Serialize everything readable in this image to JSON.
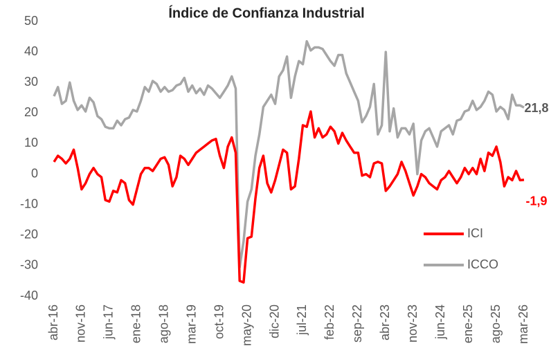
{
  "chart_data": {
    "type": "line",
    "title": "Índice de Confianza Industrial",
    "categories": [
      "abr-16",
      null,
      null,
      null,
      null,
      null,
      null,
      "nov-16",
      null,
      null,
      null,
      null,
      null,
      null,
      "jun-17",
      null,
      null,
      null,
      null,
      null,
      null,
      "ene-18",
      null,
      null,
      null,
      null,
      null,
      null,
      "ago-18",
      null,
      null,
      null,
      null,
      null,
      null,
      "mar-19",
      null,
      null,
      null,
      null,
      null,
      null,
      "oct-19",
      null,
      null,
      null,
      null,
      null,
      null,
      "may-20",
      null,
      null,
      null,
      null,
      null,
      null,
      "dic-20",
      null,
      null,
      null,
      null,
      null,
      null,
      "jul-21",
      null,
      null,
      null,
      null,
      null,
      null,
      "feb-22",
      null,
      null,
      null,
      null,
      null,
      null,
      "sep-22",
      null,
      null,
      null,
      null,
      null,
      null,
      "abr-23",
      null,
      null,
      null,
      null,
      null,
      null,
      "nov-23",
      null,
      null,
      null,
      null,
      null,
      null,
      "jun-24",
      null,
      null,
      null,
      null,
      null,
      null,
      "ene-25",
      null,
      null,
      null,
      null,
      null,
      null,
      "ago-25",
      null,
      null,
      null,
      null,
      null,
      null,
      "mar-26"
    ],
    "series": [
      {
        "name": "ICI",
        "color": "#ff0000",
        "values": [
          4,
          6,
          5,
          3.5,
          5,
          8,
          2,
          -5,
          -3,
          0,
          2,
          0,
          -1,
          -8.5,
          -9,
          -5.5,
          -6,
          -2,
          -3,
          -8.5,
          -10,
          -5,
          0,
          2,
          2,
          1,
          3,
          5,
          5.5,
          3,
          -4,
          -1,
          6,
          5,
          3,
          5,
          7,
          8,
          9,
          10,
          11,
          11.5,
          6,
          2,
          9,
          12,
          7,
          -35,
          -35.5,
          -21,
          -20.5,
          -8,
          2,
          6,
          -3,
          -6,
          -2,
          3,
          8,
          7,
          -5,
          -4,
          5,
          16,
          15.5,
          20.5,
          12,
          15,
          12,
          13,
          15.5,
          14,
          10,
          13.5,
          11,
          9,
          7,
          7,
          -0.5,
          0,
          -1,
          3.5,
          4,
          3.5,
          -5.5,
          -4,
          -2,
          0,
          4,
          1,
          -3,
          -7,
          -4,
          0,
          -1,
          -3,
          -4,
          -5,
          -2,
          -1,
          1,
          -1,
          -3,
          -1,
          2,
          0,
          2,
          0,
          5,
          1,
          7,
          6,
          9,
          4,
          -4,
          -1,
          -2,
          1,
          -2,
          -1.9
        ],
        "value_labels": [
          null,
          null,
          null,
          null,
          null,
          null,
          null,
          null,
          null,
          null,
          null,
          null,
          null,
          null,
          null,
          null,
          null,
          null,
          null,
          null,
          null,
          null,
          null,
          null,
          null,
          null,
          null,
          null,
          null,
          null,
          null,
          null,
          null,
          null,
          null,
          null,
          null,
          null,
          null,
          null,
          null,
          null,
          null,
          null,
          null,
          null,
          null,
          null,
          null,
          null,
          null,
          null,
          null,
          null,
          null,
          null,
          null,
          null,
          null,
          null,
          null,
          null,
          null,
          null,
          null,
          null,
          null,
          null,
          null,
          null,
          null,
          null,
          null,
          null,
          null,
          null,
          null,
          null,
          null,
          null,
          null,
          null,
          null,
          null,
          null,
          null,
          null,
          null,
          null,
          null,
          null,
          null,
          null,
          null,
          null,
          null,
          null,
          null,
          null,
          null,
          null,
          null,
          null,
          null,
          null,
          null,
          null,
          null,
          null,
          null,
          null,
          null,
          null,
          null,
          null,
          null,
          null,
          null,
          null,
          "-1,9"
        ]
      },
      {
        "name": "ICCO",
        "color": "#a6a6a6",
        "values": [
          25.5,
          28.5,
          23,
          24,
          30,
          24,
          21,
          22.5,
          20.5,
          25,
          23.5,
          19,
          18,
          15.5,
          15,
          15,
          17.5,
          16,
          18,
          18.5,
          21,
          20.5,
          24,
          28.5,
          27,
          30.5,
          29.5,
          27,
          28.5,
          27,
          27.5,
          29,
          29.5,
          31.5,
          27,
          29,
          26.5,
          28,
          26,
          29,
          28,
          26.5,
          25,
          27,
          29,
          32,
          28,
          -30.5,
          -22,
          -9,
          -5,
          6,
          13,
          22,
          24,
          26,
          23,
          32,
          34,
          38.5,
          25,
          32,
          37,
          36,
          43.5,
          40.5,
          41.5,
          41.5,
          41,
          39,
          37,
          35.5,
          39,
          39,
          33,
          30,
          27,
          24,
          17,
          19,
          22,
          29.5,
          13,
          16,
          40,
          14,
          21.5,
          12,
          15,
          15,
          13,
          16.5,
          0,
          11,
          14,
          15,
          12,
          9,
          14,
          15,
          16,
          13,
          17.5,
          18,
          20.5,
          21,
          24,
          21,
          22,
          24,
          27,
          26,
          20.5,
          22,
          21,
          18,
          26,
          22.5,
          22.5,
          21.8
        ],
        "value_labels": [
          null,
          null,
          null,
          null,
          null,
          null,
          null,
          null,
          null,
          null,
          null,
          null,
          null,
          null,
          null,
          null,
          null,
          null,
          null,
          null,
          null,
          null,
          null,
          null,
          null,
          null,
          null,
          null,
          null,
          null,
          null,
          null,
          null,
          null,
          null,
          null,
          null,
          null,
          null,
          null,
          null,
          null,
          null,
          null,
          null,
          null,
          null,
          null,
          null,
          null,
          null,
          null,
          null,
          null,
          null,
          null,
          null,
          null,
          null,
          null,
          null,
          null,
          null,
          null,
          null,
          null,
          null,
          null,
          null,
          null,
          null,
          null,
          null,
          null,
          null,
          null,
          null,
          null,
          null,
          null,
          null,
          null,
          null,
          null,
          null,
          null,
          null,
          null,
          null,
          null,
          null,
          null,
          null,
          null,
          null,
          null,
          null,
          null,
          null,
          null,
          null,
          null,
          null,
          null,
          null,
          null,
          null,
          null,
          null,
          null,
          null,
          null,
          null,
          null,
          null,
          null,
          null,
          null,
          null,
          "21,8"
        ]
      }
    ],
    "ylim": [
      -40,
      50
    ],
    "yticks": [
      -40,
      -30,
      -20,
      -10,
      0,
      10,
      20,
      30,
      40,
      50
    ],
    "grid": false
  }
}
